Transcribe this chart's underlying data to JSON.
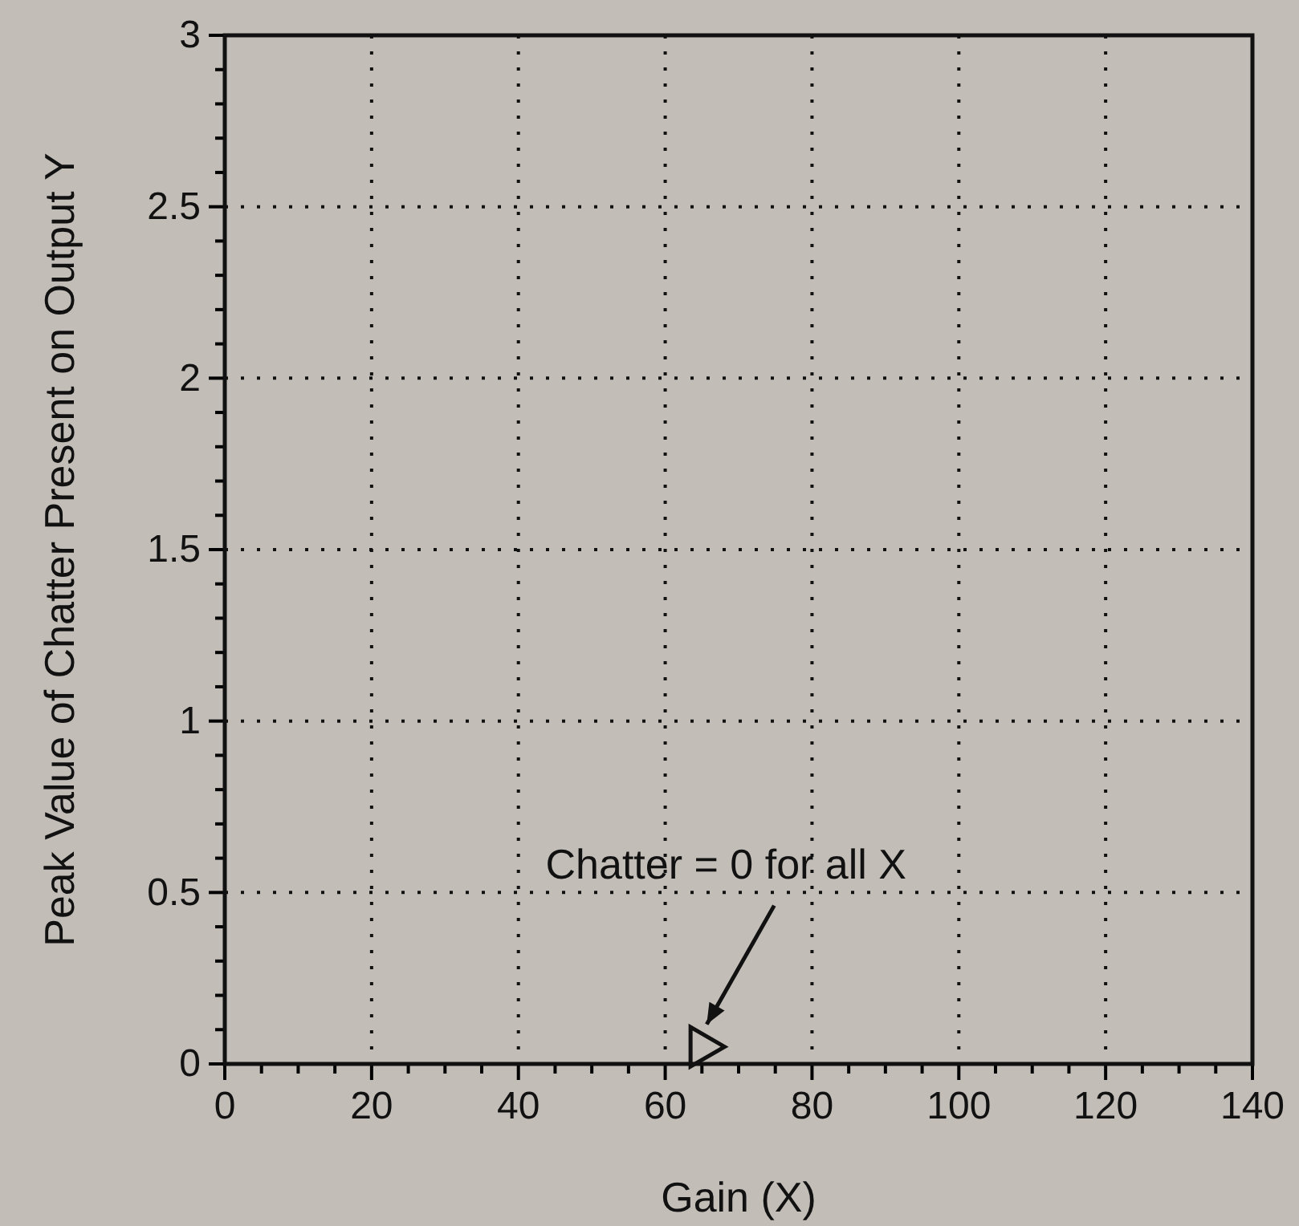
{
  "chart_data": {
    "type": "scatter",
    "xlabel": "Gain (X)",
    "ylabel": "Peak Value of Chatter Present on Output Y",
    "series": [
      {
        "x": [
          65
        ],
        "values": [
          0.05
        ],
        "color": "#111111"
      }
    ],
    "marker": "triangle",
    "xlim": [
      0,
      140
    ],
    "ylim": [
      0,
      3
    ],
    "xticks": [
      0,
      {
        "value": 5,
        "label": null
      },
      {
        "value": 10,
        "label": null
      },
      {
        "value": 15,
        "label": null
      },
      20,
      {
        "value": 25,
        "label": null
      },
      {
        "value": 30,
        "label": null
      },
      {
        "value": 35,
        "label": null
      },
      40,
      {
        "value": 45,
        "label": null
      },
      {
        "value": 50,
        "label": null
      },
      {
        "value": 55,
        "label": null
      },
      60,
      {
        "value": 65,
        "label": null
      },
      {
        "value": 70,
        "label": null
      },
      {
        "value": 75,
        "label": null
      },
      80,
      {
        "value": 85,
        "label": null
      },
      {
        "value": 90,
        "label": null
      },
      {
        "value": 95,
        "label": null
      },
      100,
      {
        "value": 105,
        "label": null
      },
      {
        "value": 110,
        "label": null
      },
      {
        "value": 115,
        "label": null
      },
      120,
      {
        "value": 125,
        "label": null
      },
      {
        "value": 130,
        "label": null
      },
      {
        "value": 135,
        "label": null
      },
      140
    ],
    "yticks": [
      0,
      {
        "value": 0.1,
        "label": null
      },
      {
        "value": 0.2,
        "label": null
      },
      {
        "value": 0.3,
        "label": null
      },
      {
        "value": 0.4,
        "label": null
      },
      0.5,
      {
        "value": 0.6,
        "label": null
      },
      {
        "value": 0.7,
        "label": null
      },
      {
        "value": 0.8,
        "label": null
      },
      {
        "value": 0.9,
        "label": null
      },
      1,
      {
        "value": 1.1,
        "label": null
      },
      {
        "value": 1.2,
        "label": null
      },
      {
        "value": 1.3,
        "label": null
      },
      {
        "value": 1.4,
        "label": null
      },
      1.5,
      {
        "value": 1.6,
        "label": null
      },
      {
        "value": 1.7,
        "label": null
      },
      {
        "value": 1.8,
        "label": null
      },
      {
        "value": 1.9,
        "label": null
      },
      2,
      {
        "value": 2.1,
        "label": null
      },
      {
        "value": 2.2,
        "label": null
      },
      {
        "value": 2.3,
        "label": null
      },
      {
        "value": 2.4,
        "label": null
      },
      2.5,
      {
        "value": 2.6,
        "label": null
      },
      {
        "value": 2.7,
        "label": null
      },
      {
        "value": 2.8,
        "label": null
      },
      {
        "value": 2.9,
        "label": null
      },
      3
    ],
    "grid": true,
    "annotations": [
      "Chatter = 0 for all X"
    ]
  }
}
